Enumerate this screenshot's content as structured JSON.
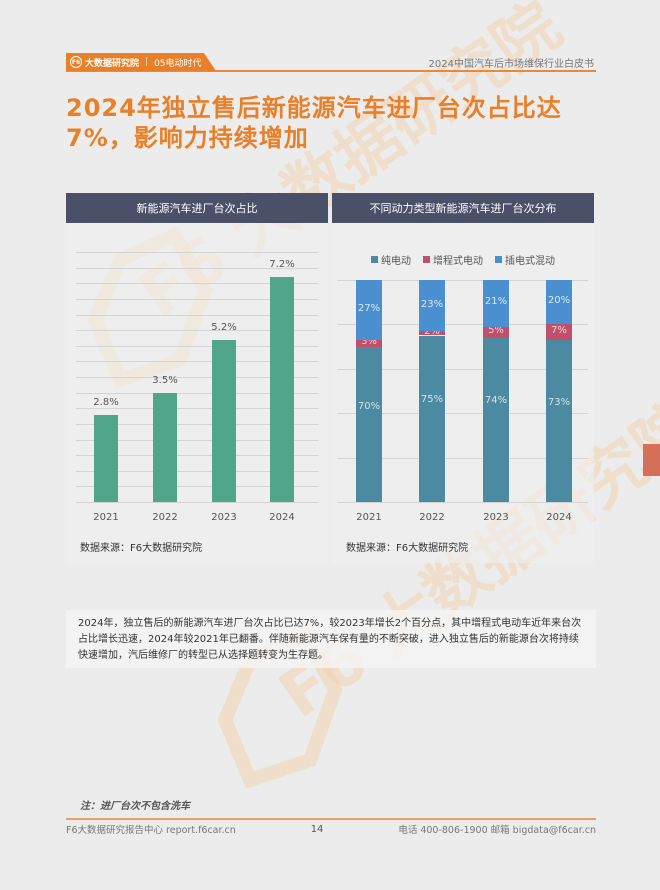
{
  "header": {
    "logo_text": "F6",
    "org": "大数据研究院",
    "section": "05电动时代",
    "doc_title": "2024中国汽车后市场维保行业白皮书"
  },
  "title": {
    "line1": "2024年独立售后新能源汽车进厂台次占比达",
    "line2": "7%，影响力持续增加"
  },
  "colors": {
    "accent": "#e8802a",
    "panel_header": "#4a5068",
    "bar_green": "#4fa68a",
    "pure_ev": "#4b8aa0",
    "erev": "#c0506a",
    "phev": "#4a90d0"
  },
  "chart_data": [
    {
      "type": "bar",
      "title": "新能源汽车进厂台次占比",
      "categories": [
        "2021",
        "2022",
        "2023",
        "2024"
      ],
      "values": [
        2.8,
        3.5,
        5.2,
        7.2
      ],
      "value_labels": [
        "2.8%",
        "3.5%",
        "5.2%",
        "7.2%"
      ],
      "xlabel": "",
      "ylabel": "",
      "ylim": [
        0,
        8
      ],
      "grid": true,
      "source": "数据来源：F6大数据研究院"
    },
    {
      "type": "bar",
      "stacked": true,
      "title": "不同动力类型新能源汽车进厂台次分布",
      "categories": [
        "2021",
        "2022",
        "2023",
        "2024"
      ],
      "series": [
        {
          "name": "纯电动",
          "values": [
            70,
            75,
            74,
            73
          ],
          "labels": [
            "70%",
            "75%",
            "74%",
            "73%"
          ]
        },
        {
          "name": "增程式电动",
          "values": [
            3,
            2,
            5,
            7
          ],
          "labels": [
            "3%",
            "2%",
            "5%",
            "7%"
          ]
        },
        {
          "name": "插电式混动",
          "values": [
            27,
            23,
            21,
            20
          ],
          "labels": [
            "27%",
            "23%",
            "21%",
            "20%"
          ]
        }
      ],
      "ylim": [
        0,
        100
      ],
      "grid": true,
      "legend_position": "top",
      "source": "数据来源：F6大数据研究院"
    }
  ],
  "summary": "2024年，独立售后的新能源汽车进厂台次占比已达7%，较2023年增长2个百分点，其中增程式电动车近年来台次占比增长迅速，2024年较2021年已翻番。伴随新能源汽车保有量的不断突破，进入独立售后的新能源台次将持续快速增加，汽后维修厂的转型已从选择题转变为生存题。",
  "note": "注：进厂台次不包含洗车",
  "footer": {
    "left": "F6大数据研究报告中心 report.f6car.cn",
    "page": "14",
    "right": "电话 400-806-1900  邮箱 bigdata@f6car.cn"
  },
  "watermark": "F6 大数据研究院"
}
